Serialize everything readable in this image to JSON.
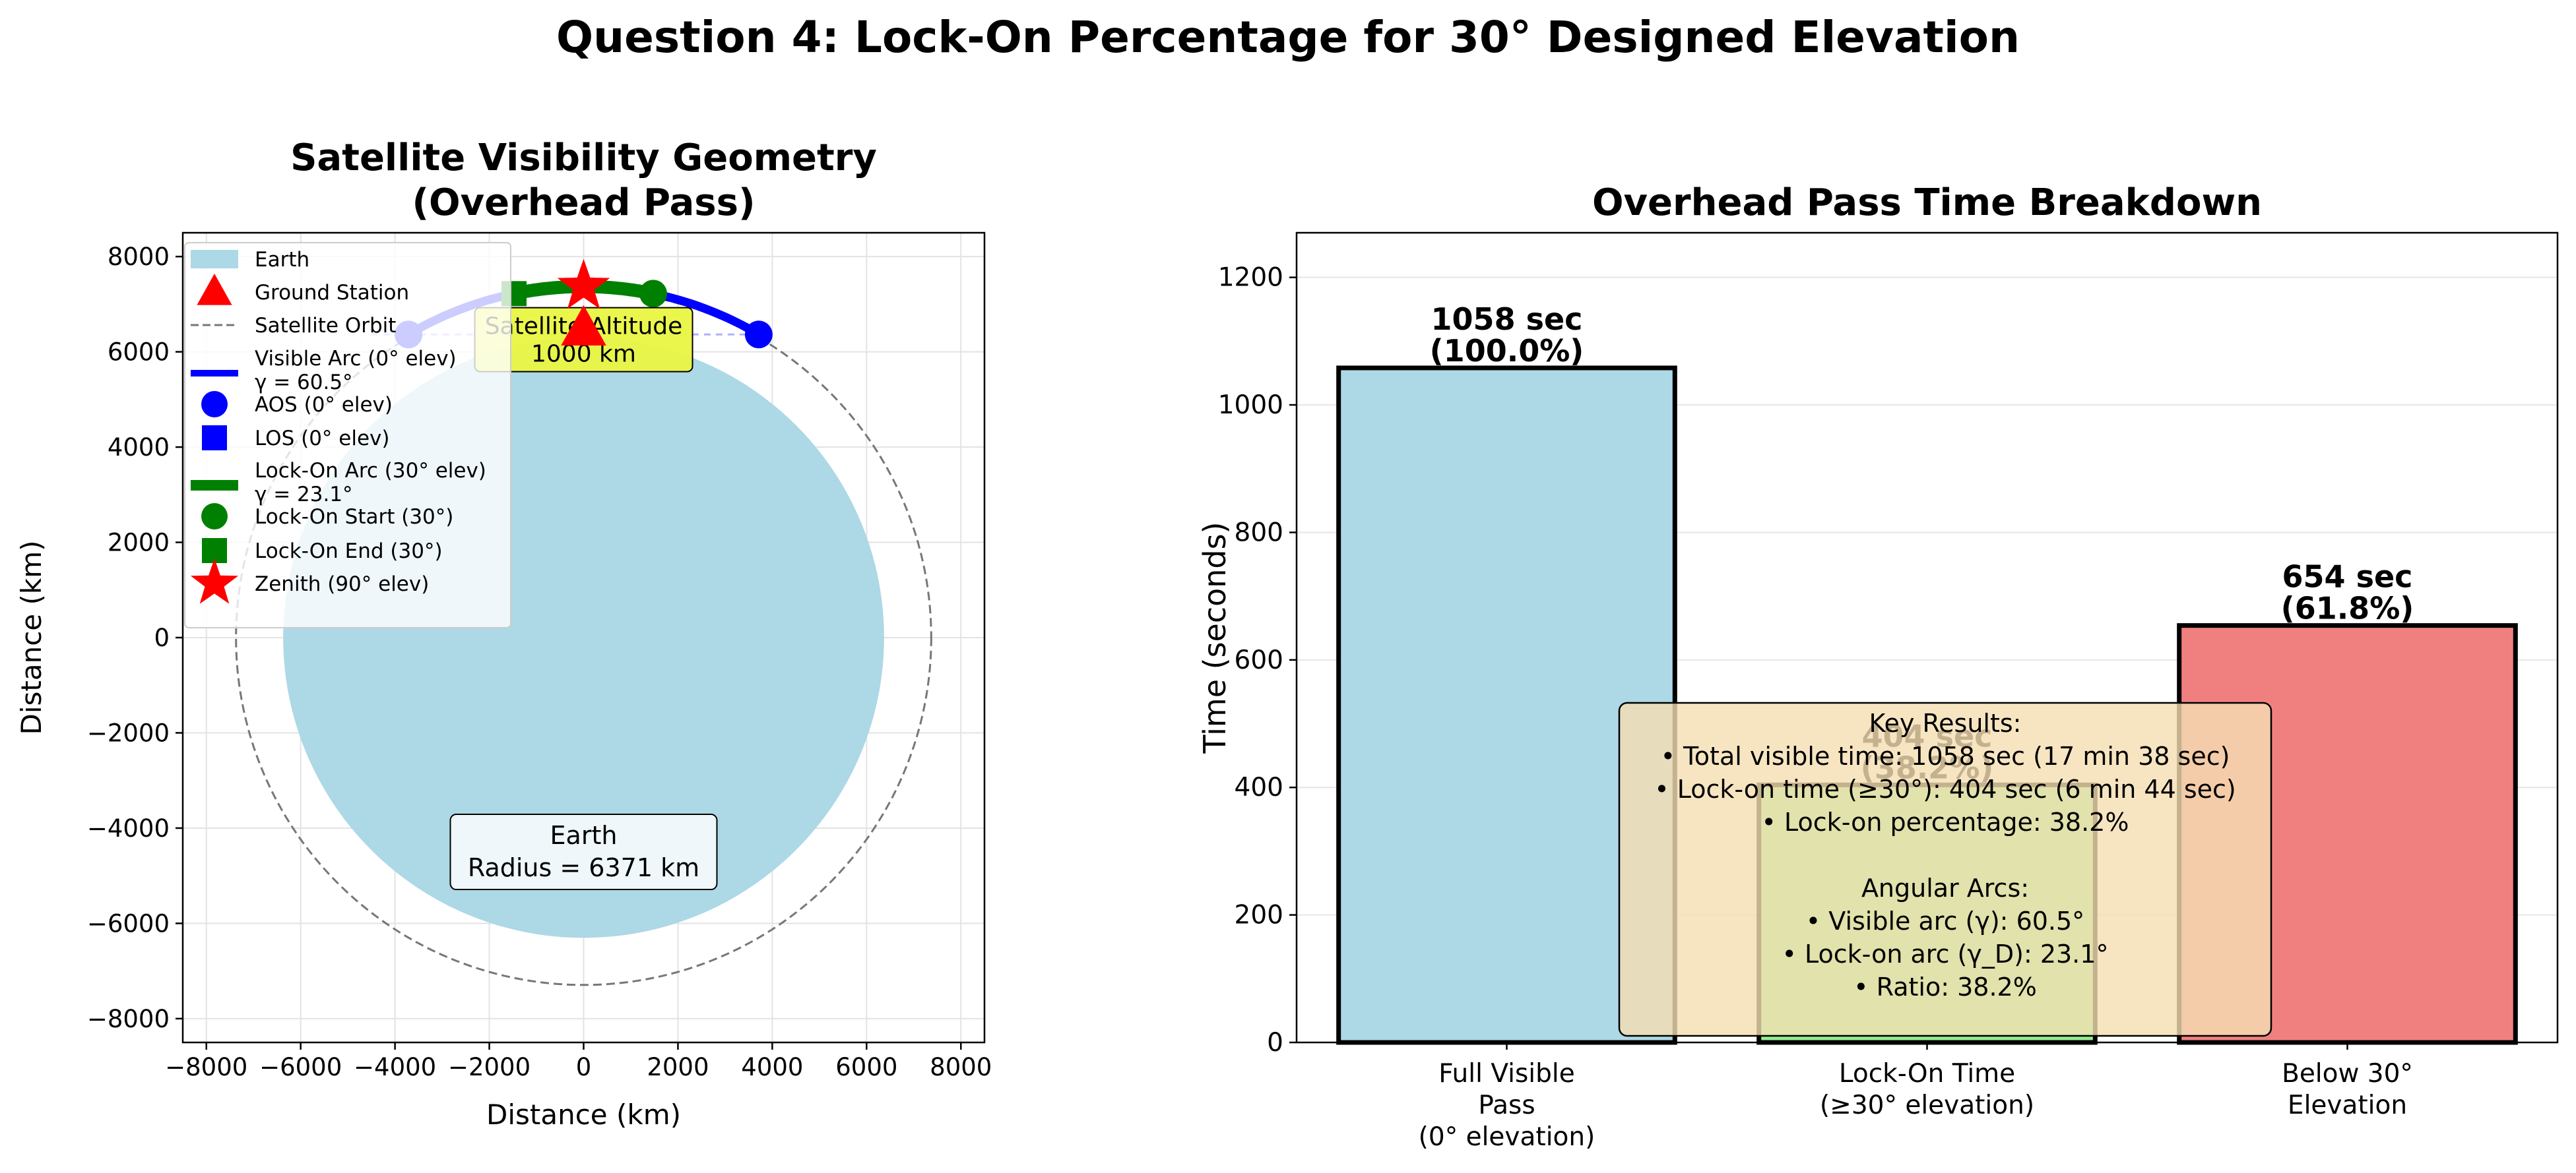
{
  "suptitle": "Question 4: Lock-On Percentage for 30° Designed Elevation",
  "colors": {
    "earth": "#add8e6",
    "visible": "#0000ff",
    "lockon": "#008000",
    "zenith": "#ff0000",
    "orbit": "#777777",
    "bar_full": "#add8e6",
    "bar_lock": "#90ee90",
    "bar_below": "#f08080",
    "altitude_box": "#eaf542",
    "results_box": "#f5deb3"
  },
  "chart_data": [
    {
      "type": "scatter",
      "title": "Satellite Visibility Geometry\n(Overhead Pass)",
      "xlabel": "Distance (km)",
      "ylabel": "Distance (km)",
      "xlim": [
        -8500,
        8500
      ],
      "ylim": [
        -8500,
        8500
      ],
      "xticks": [
        -8000,
        -6000,
        -4000,
        -2000,
        0,
        2000,
        4000,
        6000,
        8000
      ],
      "yticks": [
        -8000,
        -6000,
        -4000,
        -2000,
        0,
        2000,
        4000,
        6000,
        8000
      ],
      "grid": true,
      "legend_position": "upper-left",
      "earth_radius_km": 6371,
      "orbit_radius_km": 7371,
      "ground_station": [
        0,
        6371
      ],
      "visible_arc_half_angle_deg": 30.25,
      "lockon_arc_half_angle_deg": 11.55,
      "aos": [
        -3713,
        6364
      ],
      "los": [
        3713,
        6364
      ],
      "lockon_start": [
        1476,
        7222
      ],
      "lockon_end": [
        -1476,
        7222
      ],
      "zenith": [
        0,
        7371
      ],
      "legend": [
        {
          "key": "earth",
          "label": "Earth"
        },
        {
          "key": "gs",
          "label": "Ground Station"
        },
        {
          "key": "orbit",
          "label": "Satellite Orbit"
        },
        {
          "key": "vis",
          "label": "Visible Arc (0° elev)",
          "label2": "γ = 60.5°"
        },
        {
          "key": "aos",
          "label": "AOS (0° elev)"
        },
        {
          "key": "los",
          "label": "LOS (0° elev)"
        },
        {
          "key": "lock",
          "label": "Lock-On Arc (30° elev)",
          "label2": "γ = 23.1°"
        },
        {
          "key": "lstart",
          "label": "Lock-On Start (30°)"
        },
        {
          "key": "lend",
          "label": "Lock-On End (30°)"
        },
        {
          "key": "zen",
          "label": "Zenith (90° elev)"
        }
      ],
      "annotations": {
        "altitude_line1": "Satellite Altitude",
        "altitude_line2": "1000 km",
        "earth_line1": "Earth",
        "earth_line2": "Radius = 6371 km"
      }
    },
    {
      "type": "bar",
      "title": "Overhead Pass Time Breakdown",
      "ylabel": "Time (seconds)",
      "ylim": [
        0,
        1270
      ],
      "yticks": [
        0,
        200,
        400,
        600,
        800,
        1000,
        1200
      ],
      "grid": true,
      "categories": [
        [
          "Full Visible",
          "Pass",
          "(0° elevation)"
        ],
        [
          "Lock-On Time",
          "(≥30° elevation)"
        ],
        [
          "Below 30°",
          "Elevation"
        ]
      ],
      "values": [
        1058,
        404,
        654
      ],
      "bar_labels": [
        [
          "1058 sec",
          "(100.0%)"
        ],
        [
          "404 sec",
          "(38.2%)"
        ],
        [
          "654 sec",
          "(61.8%)"
        ]
      ],
      "results_box": [
        "Key Results:",
        "• Total visible time: 1058 sec (17 min 38 sec)",
        "• Lock-on time (≥30°): 404 sec (6 min 44 sec)",
        "• Lock-on percentage: 38.2%",
        "",
        "Angular Arcs:",
        "• Visible arc (γ): 60.5°",
        "• Lock-on arc (γ_D): 23.1°",
        "• Ratio: 38.2%"
      ]
    }
  ]
}
